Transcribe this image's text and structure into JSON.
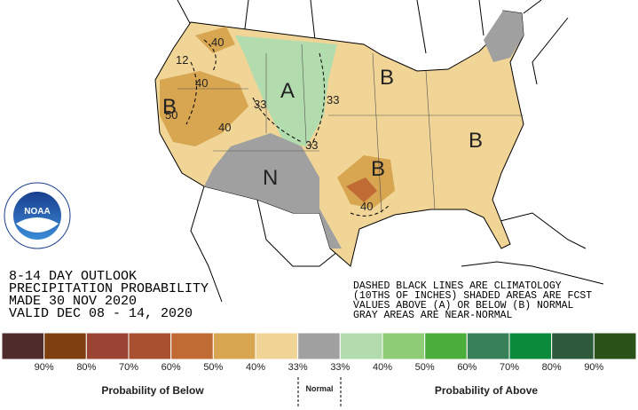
{
  "map_labels": [
    "A",
    "B",
    "B",
    "B",
    "B",
    "N",
    "40",
    "12",
    "40",
    "50",
    "40",
    "33",
    "33",
    "33",
    "40"
  ],
  "logo": "NOAA",
  "outlook": [
    "8-14 DAY OUTLOOK",
    "PRECIPITATION PROBABILITY",
    "MADE  30 NOV 2020",
    "VALID  DEC 08 - 14, 2020"
  ],
  "notes": [
    "DASHED BLACK LINES ARE CLIMATOLOGY",
    "(10THS OF INCHES) SHADED AREAS ARE FCST",
    "VALUES ABOVE (A) OR BELOW (B) NORMAL",
    "GRAY AREAS ARE NEAR-NORMAL"
  ],
  "legend": {
    "colors": [
      "#4f2b2b",
      "#7f3f0e",
      "#9b4433",
      "#a95030",
      "#c06a34",
      "#d8a550",
      "#f0d596",
      "#a0a0a0",
      "#b2dcad",
      "#8ecd76",
      "#4cae3a",
      "#378058",
      "#0b8a3c",
      "#2c5a3b",
      "#2b5218"
    ],
    "labels": [
      "90%",
      "80%",
      "70%",
      "60%",
      "50%",
      "40%",
      "33%",
      "33%",
      "40%",
      "50%",
      "60%",
      "70%",
      "80%",
      "90%"
    ],
    "below": "Probability of Below",
    "normal": "Normal",
    "above": "Probability of Above"
  }
}
